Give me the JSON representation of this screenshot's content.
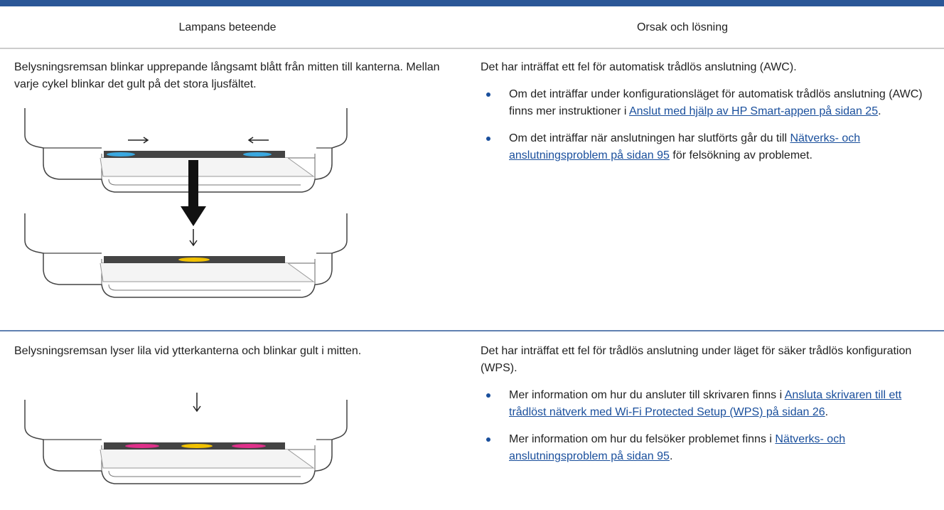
{
  "header": {
    "columns": [
      "Lampans beteende",
      "Orsak och lösning"
    ]
  },
  "rows": [
    {
      "behavior": "Belysningsremsan blinkar upprepande långsamt blått från mitten till kanterna. Mellan varje cykel blinkar det gult på det stora ljusfältet.",
      "cause": "Det har inträffat ett fel för automatisk trådlös anslutning (AWC).",
      "bullets": [
        {
          "before": "Om det inträffar under konfigurationsläget för automatisk trådlös anslutning (AWC) finns mer instruktioner i ",
          "link": "Anslut med hjälp av HP Smart-appen på sidan 25",
          "after": "."
        },
        {
          "before": "Om det inträffar när anslutningen har slutförts går du till ",
          "link": "Nätverks- och anslutningsproblem på sidan 95",
          "after": " för felsökning av problemet."
        }
      ]
    },
    {
      "behavior": "Belysningsremsan lyser lila vid ytterkanterna och blinkar gult i mitten.",
      "cause": "Det har inträffat ett fel för trådlös anslutning under läget för säker trådlös konfiguration (WPS).",
      "bullets": [
        {
          "before": "Mer information om hur du ansluter till skrivaren finns i ",
          "link": "Ansluta skrivaren till ett trådlöst nätverk med Wi-Fi Protected Setup (WPS) på sidan 26",
          "after": "."
        },
        {
          "before": "Mer information om hur du felsöker problemet finns i ",
          "link": "Nätverks- och anslutningsproblem på sidan 95",
          "after": "."
        }
      ]
    }
  ]
}
